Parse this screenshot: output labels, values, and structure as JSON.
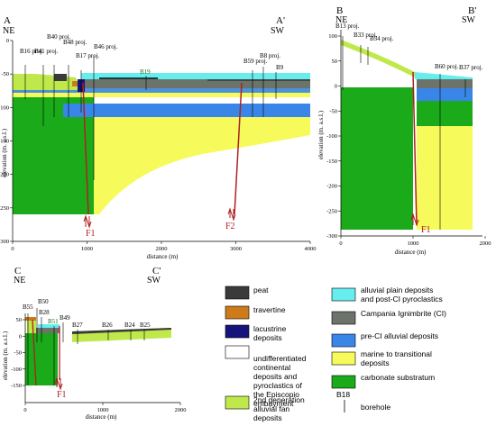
{
  "sections": {
    "a": {
      "start_letter": "A",
      "start_dir": "NE",
      "end_letter": "A'",
      "end_dir": "SW",
      "boreholes": [
        "B16 proj.",
        "B41 proj.",
        "B40 proj.",
        "B48 proj.",
        "B17 proj.",
        "B46 proj.",
        "B19",
        "B59 proj.",
        "B8 proj.",
        "B9"
      ],
      "fault_labels": [
        "F1",
        "F2"
      ],
      "y_ticks": [
        "0",
        "-50",
        "-100",
        "-150",
        "-200",
        "-250",
        "-300"
      ],
      "x_ticks": [
        "0",
        "1000",
        "2000",
        "3000",
        "4000"
      ],
      "ylabel": "elevation (m. a.s.l.)",
      "xlabel": "distance (m)"
    },
    "b": {
      "start_letter": "B",
      "start_dir": "NE",
      "end_letter": "B'",
      "end_dir": "SW",
      "boreholes": [
        "B13 proj.",
        "B33 proj.",
        "B34 proj.",
        "B60 proj.",
        "B37 proj."
      ],
      "fault_labels": [
        "F1"
      ],
      "y_ticks": [
        "100",
        "50",
        "0",
        "-50",
        "-100",
        "-150",
        "-200",
        "-250",
        "-300"
      ],
      "x_ticks": [
        "0",
        "1000",
        "2000"
      ],
      "ylabel": "elevation (m. a.s.l.)",
      "xlabel": "distance (m)"
    },
    "c": {
      "start_letter": "C",
      "start_dir": "NE",
      "end_letter": "C'",
      "end_dir": "SW",
      "boreholes": [
        "B55",
        "B50",
        "B28",
        "B51",
        "B49",
        "B27",
        "B26",
        "B24",
        "B25"
      ],
      "fault_labels": [
        "F1"
      ],
      "y_ticks": [
        "50",
        "0",
        "-50",
        "-100",
        "-150"
      ],
      "x_ticks": [
        "0",
        "1000",
        "2000"
      ],
      "ylabel": "elevation (m. a.s.l.)",
      "xlabel": "distance (m)"
    }
  },
  "legend": {
    "items": [
      {
        "label": "peat",
        "color": "#3a3a3a"
      },
      {
        "label": "travertine",
        "color": "#cc7a1a"
      },
      {
        "label": "lacustrine deposits",
        "color": "#14147a"
      },
      {
        "label": "undifferentiated continental deposits and pyroclastics of the Episcopio embayment",
        "color": "#ffffff"
      },
      {
        "label": "2nd generation alluvial fan deposits",
        "color": "#bfe84a"
      },
      {
        "label": "alluvial plain deposits and post-CI pyroclastics",
        "color": "#66eeee"
      },
      {
        "label": "Campania Ignimbrite (CI)",
        "color": "#6b736b"
      },
      {
        "label": "pre-CI alluvial deposits",
        "color": "#3a86e8"
      },
      {
        "label": "marine to transitional deposits",
        "color": "#f6fa5a"
      },
      {
        "label": "carbonate substratum",
        "color": "#1aaa1a"
      }
    ],
    "borehole_sample": "B18",
    "borehole_label": "borehole"
  }
}
